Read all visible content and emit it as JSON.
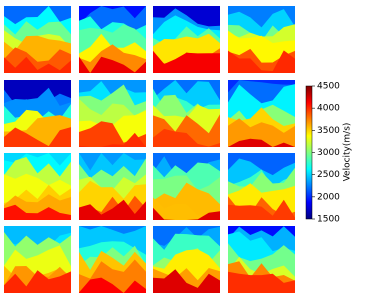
{
  "chart_data": {
    "type": "heatmap",
    "colormap": "jet",
    "colorbar_label": "Velocity(m/s)",
    "clim": [
      1500,
      4500
    ],
    "cticks": [
      1500,
      2000,
      2500,
      3000,
      3500,
      4000,
      4500
    ]
  }
}
